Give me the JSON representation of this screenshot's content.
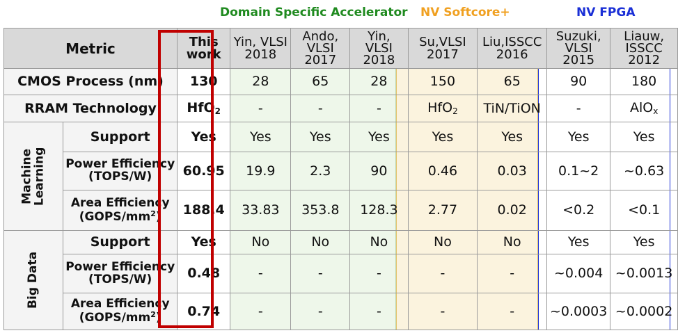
{
  "groups": {
    "dsa": "Domain Specific Accelerator",
    "nv_softcore": "NV Softcore+",
    "nv_fpga": "NV FPGA"
  },
  "header": {
    "metric": "Metric",
    "this_work": [
      "This",
      "work"
    ],
    "refs": [
      [
        "Yin, VLSI",
        "2018"
      ],
      [
        "Ando,",
        "VLSI",
        "2017"
      ],
      [
        "Yin,",
        "VLSI",
        "2018"
      ],
      [
        "Su,VLSI",
        "2017"
      ],
      [
        "Liu,ISSCC",
        "2016"
      ],
      [
        "Suzuki,",
        "VLSI",
        "2015"
      ],
      [
        "Liauw,",
        "ISSCC",
        "2012"
      ]
    ]
  },
  "rows": {
    "cmos": {
      "label": "CMOS Process (nm)",
      "this": "130",
      "values": [
        "28",
        "65",
        "28",
        "150",
        "65",
        "90",
        "180"
      ]
    },
    "rram": {
      "label": "RRAM Technology",
      "this_base": "HfO",
      "this_sub": "2",
      "values": [
        "-",
        "-",
        "-"
      ],
      "su_base": "HfO",
      "su_sub": "2",
      "liu": "TiN/TiON",
      "suzuki": "-",
      "liauw_base": "AlO",
      "liauw_sub": "x"
    },
    "ml_group": [
      "Machine",
      "Learning"
    ],
    "ml_support": {
      "label": "Support",
      "this": "Yes",
      "values": [
        "Yes",
        "Yes",
        "Yes",
        "Yes",
        "Yes",
        "Yes",
        "Yes"
      ]
    },
    "ml_power": {
      "label": [
        "Power Efficiency",
        "(TOPS/W)"
      ],
      "this": "60.95",
      "values": [
        "19.9",
        "2.3",
        "90",
        "0.46",
        "0.03",
        "0.1~2",
        "~0.63"
      ]
    },
    "ml_area": {
      "label_line1": "Area Efficiency",
      "label_line2": "(GOPS/mm",
      "label_sup": "2",
      "label_close": ")",
      "this": "188.4",
      "values": [
        "33.83",
        "353.8",
        "128.3",
        "2.77",
        "0.02",
        "<0.2",
        "<0.1"
      ]
    },
    "bd_group": "Big Data",
    "bd_support": {
      "label": "Support",
      "this": "Yes",
      "values": [
        "No",
        "No",
        "No",
        "No",
        "No",
        "Yes",
        "Yes"
      ]
    },
    "bd_power": {
      "label": [
        "Power Efficiency",
        "(TOPS/W)"
      ],
      "this": "0.48",
      "values": [
        "-",
        "-",
        "-",
        "-",
        "-",
        "~0.004",
        "~0.0013"
      ]
    },
    "bd_area": {
      "label_line1": "Area Efficiency",
      "label_line2": "(GOPS/mm",
      "label_sup": "2",
      "label_close": ")",
      "this": "0.74",
      "values": [
        "-",
        "-",
        "-",
        "-",
        "-",
        "~0.0003",
        "~0.0002"
      ]
    }
  },
  "colors": {
    "dsa": "#1f8a1f",
    "nv_softcore": "#f0a020",
    "nv_fpga": "#1a2fd6",
    "highlight": "#c00000"
  }
}
